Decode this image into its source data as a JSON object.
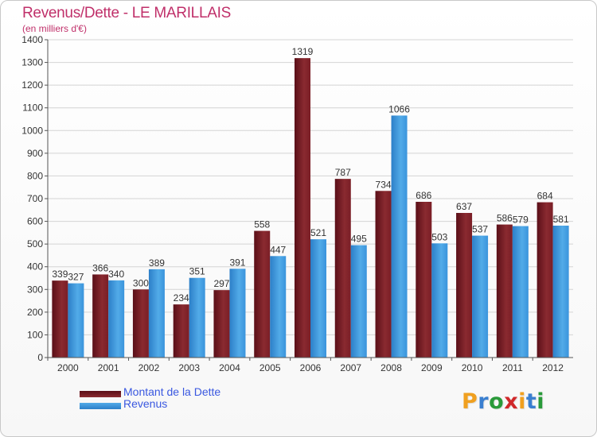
{
  "title": "Revenus/Dette - LE MARILLAIS",
  "subtitle": "(en milliers d'€)",
  "colors": {
    "title": "#c0306a",
    "debt": "#7a1a24",
    "revenue": "#3a94dc",
    "legend_text": "#3a58e0"
  },
  "legend": {
    "debt_label": "Montant de la Dette",
    "revenue_label": "Revenus",
    "position": "bottom-left"
  },
  "brand": {
    "text": "Proxiti",
    "letters": [
      "P",
      "r",
      "o",
      "x",
      "i",
      "t",
      "i"
    ],
    "letter_colors": [
      "#f0a020",
      "#3a7fd0",
      "#2a9a3a",
      "#d0282a",
      "#f0a020",
      "#3a7fd0",
      "#2a9a3a"
    ]
  },
  "chart_data": {
    "type": "bar",
    "title": "Revenus/Dette - LE MARILLAIS",
    "subtitle": "(en milliers d'€)",
    "categories": [
      "2000",
      "2001",
      "2002",
      "2003",
      "2004",
      "2005",
      "2006",
      "2007",
      "2008",
      "2009",
      "2010",
      "2011",
      "2012"
    ],
    "series": [
      {
        "name": "Montant de la Dette",
        "values": [
          339,
          366,
          300,
          234,
          297,
          558,
          1319,
          787,
          734,
          686,
          637,
          586,
          684
        ]
      },
      {
        "name": "Revenus",
        "values": [
          327,
          340,
          389,
          351,
          391,
          447,
          521,
          495,
          1066,
          503,
          537,
          579,
          581
        ]
      }
    ],
    "ylim": [
      0,
      1400
    ],
    "yticks": [
      0,
      100,
      200,
      300,
      400,
      500,
      600,
      700,
      800,
      900,
      1000,
      1100,
      1200,
      1300,
      1400
    ],
    "grid": true,
    "legend_position": "bottom-left"
  }
}
